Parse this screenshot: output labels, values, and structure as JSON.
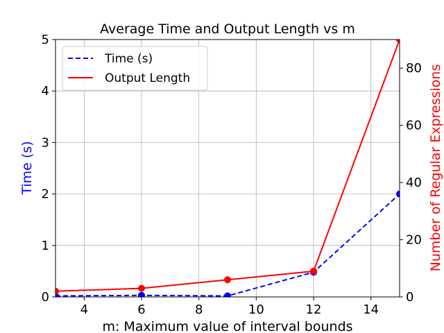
{
  "chart_data": {
    "type": "line",
    "title": "Average Time and Output Length vs m",
    "xlabel": "m: Maximum value of interval bounds",
    "ylabel_left": "Time (s)",
    "ylabel_right": "Number of Regular Expressions",
    "x": [
      3,
      6,
      9,
      12,
      15
    ],
    "xlim": [
      3,
      15
    ],
    "xticks": [
      "4",
      "6",
      "8",
      "10",
      "12",
      "14"
    ],
    "ylim_left": [
      0,
      5
    ],
    "yticks_left": [
      "0",
      "1",
      "2",
      "3",
      "4",
      "5"
    ],
    "ylim_right": [
      0,
      90
    ],
    "yticks_right": [
      "0",
      "20",
      "40",
      "60",
      "80"
    ],
    "grid": true,
    "legend_position": "upper-left",
    "series": [
      {
        "name": "Time (s)",
        "axis": "left",
        "style": "dashed",
        "color": "#0000ff",
        "values": [
          0.02,
          0.03,
          0.02,
          0.48,
          2.0
        ]
      },
      {
        "name": "Output Length",
        "axis": "right",
        "style": "solid",
        "color": "#ff0000",
        "values": [
          2,
          3,
          6,
          9,
          90
        ]
      }
    ],
    "left_axis_color": "#0000ff",
    "right_axis_color": "#ff0000"
  }
}
